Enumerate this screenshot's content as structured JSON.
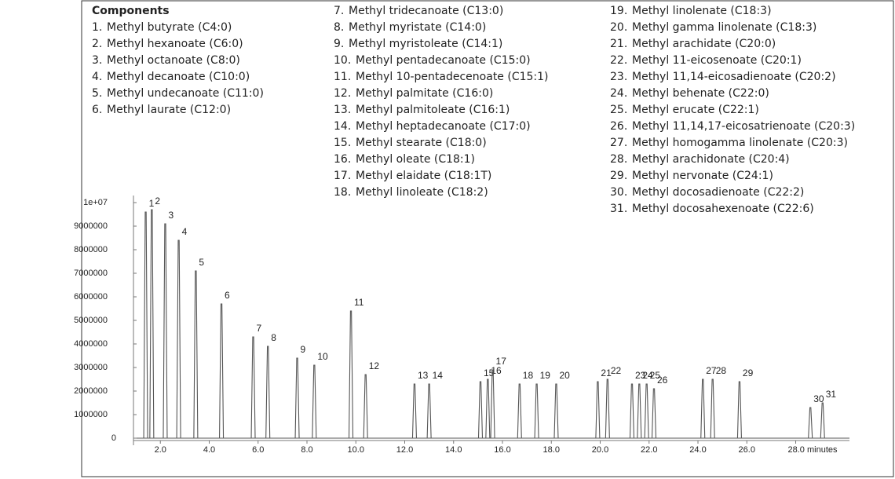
{
  "chart_data": {
    "type": "chromatogram",
    "components_title": "Components",
    "components": [
      {
        "number": "1.",
        "name": "Methyl butyrate (C4:0)"
      },
      {
        "number": "2.",
        "name": "Methyl hexanoate (C6:0)"
      },
      {
        "number": "3.",
        "name": "Methyl octanoate (C8:0)"
      },
      {
        "number": "4.",
        "name": "Methyl decanoate (C10:0)"
      },
      {
        "number": "5.",
        "name": "Methyl undecanoate (C11:0)"
      },
      {
        "number": "6.",
        "name": "Methyl laurate (C12:0)"
      },
      {
        "number": "7.",
        "name": "Methyl tridecanoate (C13:0)"
      },
      {
        "number": "8.",
        "name": "Methyl myristate (C14:0)"
      },
      {
        "number": "9.",
        "name": "Methyl myristoleate (C14:1)"
      },
      {
        "number": "10.",
        "name": "Methyl pentadecanoate (C15:0)"
      },
      {
        "number": "11.",
        "name": "Methyl 10-pentadecenoate (C15:1)"
      },
      {
        "number": "12.",
        "name": "Methyl palmitate (C16:0)"
      },
      {
        "number": "13.",
        "name": "Methyl palmitoleate (C16:1)"
      },
      {
        "number": "14.",
        "name": "Methyl heptadecanoate (C17:0)"
      },
      {
        "number": "15.",
        "name": "Methyl stearate (C18:0)"
      },
      {
        "number": "16.",
        "name": "Methyl oleate (C18:1)"
      },
      {
        "number": "17.",
        "name": "Methyl elaidate (C18:1T)"
      },
      {
        "number": "18.",
        "name": "Methyl linoleate (C18:2)"
      },
      {
        "number": "19.",
        "name": "Methyl linolenate (C18:3)"
      },
      {
        "number": "20.",
        "name": "Methyl gamma linolenate (C18:3)"
      },
      {
        "number": "21.",
        "name": "Methyl arachidate (C20:0)"
      },
      {
        "number": "22.",
        "name": "Methyl 11-eicosenoate (C20:1)"
      },
      {
        "number": "23.",
        "name": "Methyl 11,14-eicosadienoate (C20:2)"
      },
      {
        "number": "24.",
        "name": "Methyl behenate (C22:0)"
      },
      {
        "number": "25.",
        "name": "Methyl erucate (C22:1)"
      },
      {
        "number": "26.",
        "name": "Methyl 11,14,17-eicosatrienoate (C20:3)"
      },
      {
        "number": "27.",
        "name": "Methyl homogamma linolenate (C20:3)"
      },
      {
        "number": "28.",
        "name": "Methyl arachidonate (C20:4)"
      },
      {
        "number": "29.",
        "name": "Methyl nervonate (C24:1)"
      },
      {
        "number": "30.",
        "name": "Methyl docosadienoate (C22:2)"
      },
      {
        "number": "31.",
        "name": "Methyl docosahexenoate (C22:6)"
      }
    ],
    "peaks": [
      {
        "label": "1",
        "x": 1.4,
        "value": 9600000
      },
      {
        "label": "2",
        "x": 1.65,
        "value": 9700000
      },
      {
        "label": "3",
        "x": 2.2,
        "value": 9100000
      },
      {
        "label": "4",
        "x": 2.75,
        "value": 8400000
      },
      {
        "label": "5",
        "x": 3.45,
        "value": 7100000
      },
      {
        "label": "6",
        "x": 4.5,
        "value": 5700000
      },
      {
        "label": "7",
        "x": 5.8,
        "value": 4300000
      },
      {
        "label": "8",
        "x": 6.4,
        "value": 3900000
      },
      {
        "label": "9",
        "x": 7.6,
        "value": 3400000
      },
      {
        "label": "10",
        "x": 8.3,
        "value": 3100000
      },
      {
        "label": "11",
        "x": 9.8,
        "value": 5400000
      },
      {
        "label": "12",
        "x": 10.4,
        "value": 2700000
      },
      {
        "label": "13",
        "x": 12.4,
        "value": 2300000
      },
      {
        "label": "14",
        "x": 13.0,
        "value": 2300000
      },
      {
        "label": "15",
        "x": 15.1,
        "value": 2400000
      },
      {
        "label": "16",
        "x": 15.4,
        "value": 2500000
      },
      {
        "label": "17",
        "x": 15.6,
        "value": 2900000
      },
      {
        "label": "18",
        "x": 16.7,
        "value": 2300000
      },
      {
        "label": "19",
        "x": 17.4,
        "value": 2300000
      },
      {
        "label": "20",
        "x": 18.2,
        "value": 2300000
      },
      {
        "label": "21",
        "x": 19.9,
        "value": 2400000
      },
      {
        "label": "22",
        "x": 20.3,
        "value": 2500000
      },
      {
        "label": "23",
        "x": 21.3,
        "value": 2300000
      },
      {
        "label": "24",
        "x": 21.6,
        "value": 2300000
      },
      {
        "label": "25",
        "x": 21.9,
        "value": 2300000
      },
      {
        "label": "26",
        "x": 22.2,
        "value": 2100000
      },
      {
        "label": "27",
        "x": 24.2,
        "value": 2500000
      },
      {
        "label": "28",
        "x": 24.6,
        "value": 2500000
      },
      {
        "label": "29",
        "x": 25.7,
        "value": 2400000
      },
      {
        "label": "30",
        "x": 28.6,
        "value": 1300000
      },
      {
        "label": "31",
        "x": 29.1,
        "value": 1500000
      }
    ],
    "color": "#555555",
    "xlim": [
      0.9,
      30.2
    ],
    "ylim": [
      -300000,
      10300000
    ],
    "xticks": [
      {
        "value": 2,
        "label": "2.0"
      },
      {
        "value": 4,
        "label": "4.0"
      },
      {
        "value": 6,
        "label": "6.0"
      },
      {
        "value": 8,
        "label": "8.0"
      },
      {
        "value": 10,
        "label": "10.0"
      },
      {
        "value": 12,
        "label": "12.0"
      },
      {
        "value": 14,
        "label": "14.0"
      },
      {
        "value": 16,
        "label": "16.0"
      },
      {
        "value": 18,
        "label": "18.0"
      },
      {
        "value": 20,
        "label": "20.0"
      },
      {
        "value": 22,
        "label": "22.0"
      },
      {
        "value": 24,
        "label": "24.0"
      },
      {
        "value": 26,
        "label": "26.0"
      },
      {
        "value": 28,
        "label": "28.0 minutes"
      }
    ],
    "yticks": [
      0,
      1000000,
      2000000,
      3000000,
      4000000,
      5000000,
      6000000,
      7000000,
      8000000,
      9000000,
      {
        "value": 10000000,
        "label": "1e+07"
      }
    ]
  }
}
